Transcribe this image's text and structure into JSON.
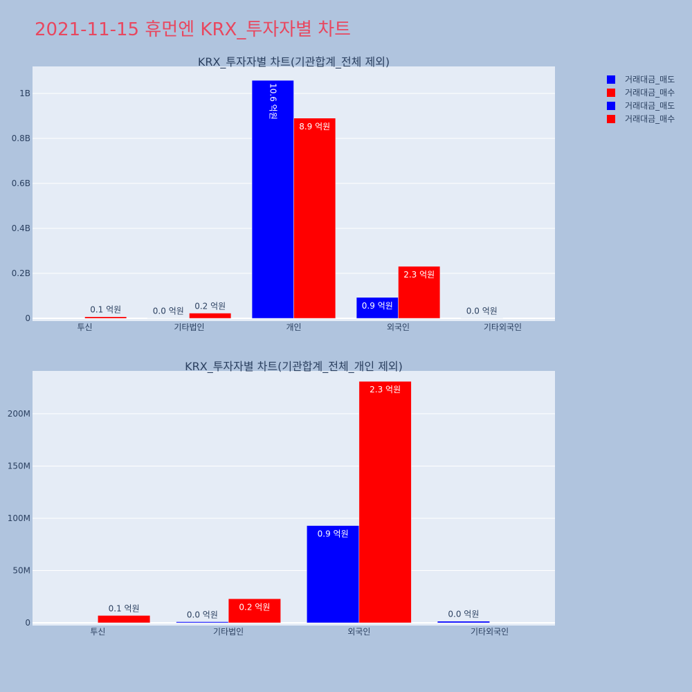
{
  "title": "2021-11-15 휴먼엔 KRX_투자자별 차트",
  "legend": {
    "entries": [
      {
        "name": "거래대금_매도",
        "color": "#0000ff"
      },
      {
        "name": "거래대금_매수",
        "color": "#ff0000"
      },
      {
        "name": "거래대금_매도",
        "color": "#0000ff"
      },
      {
        "name": "거래대금_매수",
        "color": "#ff0000"
      }
    ]
  },
  "chart_data": [
    {
      "type": "bar",
      "title": "KRX_투자자별 차트(기관합계_전체 제외)",
      "categories": [
        "투신",
        "기타법인",
        "개인",
        "외국인",
        "기타외국인"
      ],
      "ylim": [
        0,
        1120000000
      ],
      "yticks": [
        {
          "value": 0,
          "label": "0"
        },
        {
          "value": 200000000,
          "label": "0.2B"
        },
        {
          "value": 400000000,
          "label": "0.4B"
        },
        {
          "value": 600000000,
          "label": "0.6B"
        },
        {
          "value": 800000000,
          "label": "0.8B"
        },
        {
          "value": 1000000000,
          "label": "1B"
        }
      ],
      "series": [
        {
          "name": "거래대금_매도",
          "color": "#0000ff",
          "values": [
            0,
            1000000,
            1058000000,
            93000000,
            1500000
          ],
          "labels": [
            "",
            "0.0 억원",
            "10.6 억원",
            "0.9 억원",
            "0.0 억원"
          ]
        },
        {
          "name": "거래대금_매수",
          "color": "#ff0000",
          "values": [
            7000000,
            23000000,
            890000000,
            231000000,
            0
          ],
          "labels": [
            "0.1 억원",
            "0.2 억원",
            "8.9 억원",
            "2.3 억원",
            ""
          ]
        }
      ]
    },
    {
      "type": "bar",
      "title": "KRX_투자자별 차트(기관합계_전체_개인 제외)",
      "categories": [
        "투신",
        "기타법인",
        "외국인",
        "기타외국인"
      ],
      "ylim": [
        0,
        241000000
      ],
      "yticks": [
        {
          "value": 0,
          "label": "0"
        },
        {
          "value": 50000000,
          "label": "50M"
        },
        {
          "value": 100000000,
          "label": "100M"
        },
        {
          "value": 150000000,
          "label": "150M"
        },
        {
          "value": 200000000,
          "label": "200M"
        }
      ],
      "series": [
        {
          "name": "거래대금_매도",
          "color": "#0000ff",
          "values": [
            0,
            1000000,
            93000000,
            1500000
          ],
          "labels": [
            "",
            "0.0 억원",
            "0.9 억원",
            "0.0 억원"
          ]
        },
        {
          "name": "거래대금_매수",
          "color": "#ff0000",
          "values": [
            7000000,
            23000000,
            231000000,
            0
          ],
          "labels": [
            "0.1 억원",
            "0.2 억원",
            "2.3 억원",
            ""
          ]
        }
      ]
    }
  ]
}
